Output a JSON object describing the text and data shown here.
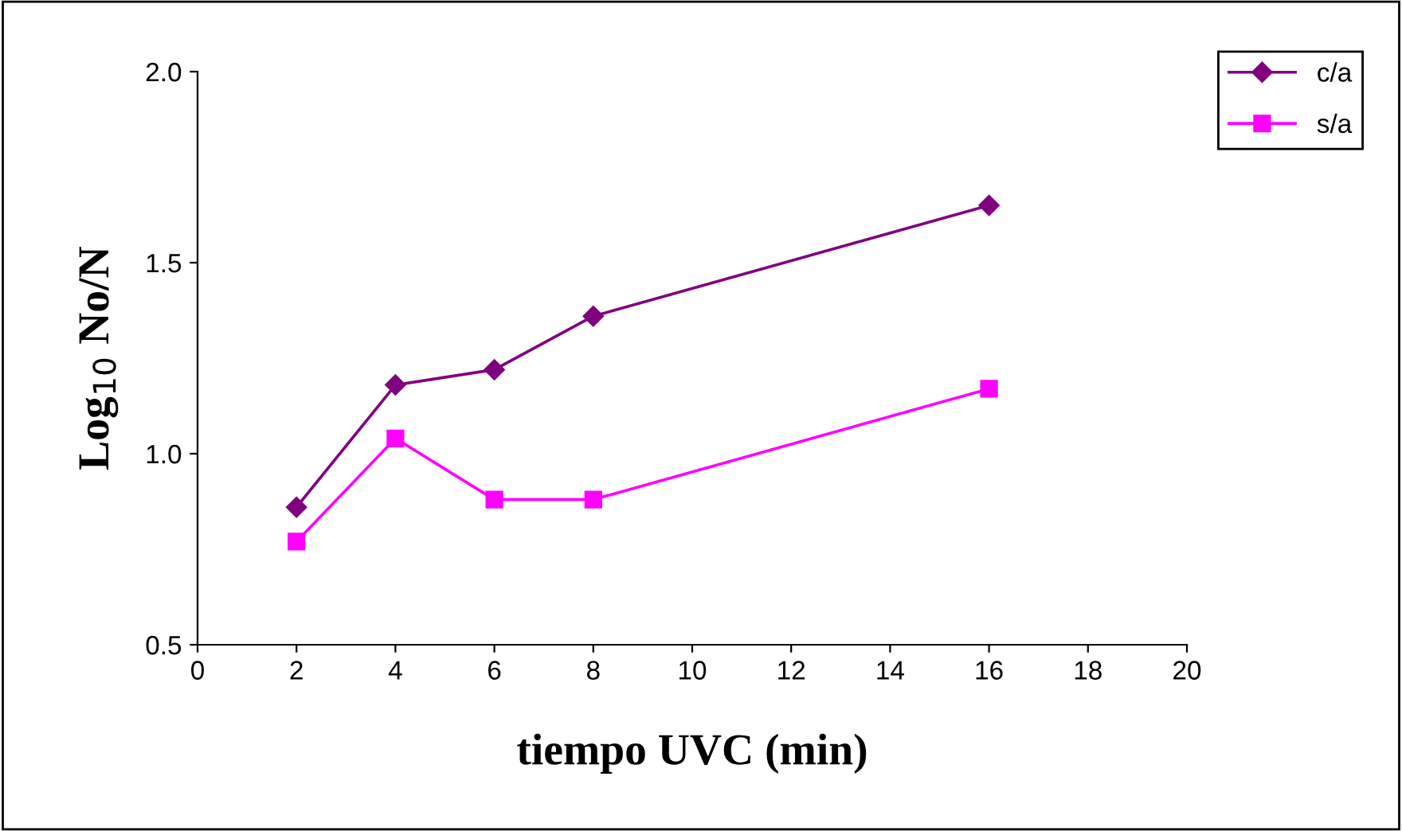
{
  "chart_data": {
    "type": "line",
    "xlabel": "tiempo UVC (min)",
    "ylabel": "Log$_{10}$ No/N",
    "x": [
      2,
      4,
      6,
      8,
      16
    ],
    "series": [
      {
        "name": "c/a",
        "color": "#800080",
        "marker": "diamond",
        "values": [
          0.86,
          1.18,
          1.22,
          1.36,
          1.65
        ]
      },
      {
        "name": "s/a",
        "color": "#ff00ff",
        "marker": "square",
        "values": [
          0.77,
          1.04,
          0.88,
          0.88,
          1.17
        ]
      }
    ],
    "xlim": [
      0,
      20
    ],
    "xticks": [
      0,
      2,
      4,
      6,
      8,
      10,
      12,
      14,
      16,
      18,
      20
    ],
    "ylim": [
      0.5,
      2.0
    ],
    "yticks": [
      {
        "value": 0.5,
        "label": "0.5"
      },
      {
        "value": 1.0,
        "label": "1.0"
      },
      {
        "value": 1.5,
        "label": "1.5"
      },
      {
        "value": 2.0,
        "label": "2.0"
      }
    ],
    "grid": false,
    "legend": "top right",
    "line_style": "solid"
  }
}
